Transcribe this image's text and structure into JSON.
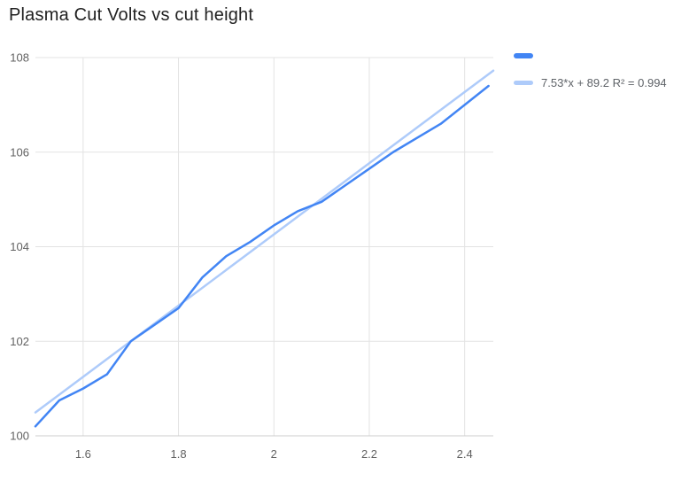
{
  "chart_data": {
    "type": "line",
    "title": "Plasma Cut Volts vs cut height",
    "xlabel": "",
    "ylabel": "",
    "xlim": [
      1.5,
      2.46
    ],
    "ylim": [
      100,
      108
    ],
    "x_ticks": [
      1.6,
      1.8,
      2,
      2.2,
      2.4
    ],
    "x_tick_labels": [
      "1.6",
      "1.8",
      "2",
      "2.2",
      "2.4"
    ],
    "y_ticks": [
      100,
      102,
      104,
      106,
      108
    ],
    "y_tick_labels": [
      "100",
      "102",
      "104",
      "106",
      "108"
    ],
    "grid": true,
    "legend_position": "top-right",
    "x": [
      1.5,
      1.55,
      1.6,
      1.65,
      1.7,
      1.75,
      1.8,
      1.85,
      1.9,
      1.95,
      2.0,
      2.05,
      2.1,
      2.15,
      2.2,
      2.25,
      2.3,
      2.35,
      2.4,
      2.45
    ],
    "series": [
      {
        "name": "",
        "color": "#4285f4",
        "stroke_width": 2.5,
        "values": [
          100.2,
          100.75,
          101.0,
          101.3,
          102.0,
          102.35,
          102.7,
          103.35,
          103.8,
          104.1,
          104.45,
          104.75,
          104.95,
          105.3,
          105.65,
          106.0,
          106.3,
          106.6,
          107.0,
          107.4
        ]
      }
    ],
    "trendline": {
      "label": "7.53*x + 89.2 R² = 0.994",
      "slope": 7.53,
      "intercept": 89.2,
      "r2": 0.994,
      "color": "#aecbfa",
      "stroke_width": 2.5
    },
    "legend": [
      {
        "label": "",
        "color": "#4285f4",
        "thickness": 6
      },
      {
        "label": "7.53*x + 89.2 R² = 0.994",
        "color": "#aecbfa",
        "thickness": 5
      }
    ],
    "colors": {
      "background": "#ffffff",
      "grid": "#e3e3e3",
      "axis": "#cccccc",
      "tick_label": "#616161",
      "title": "#212121"
    }
  }
}
